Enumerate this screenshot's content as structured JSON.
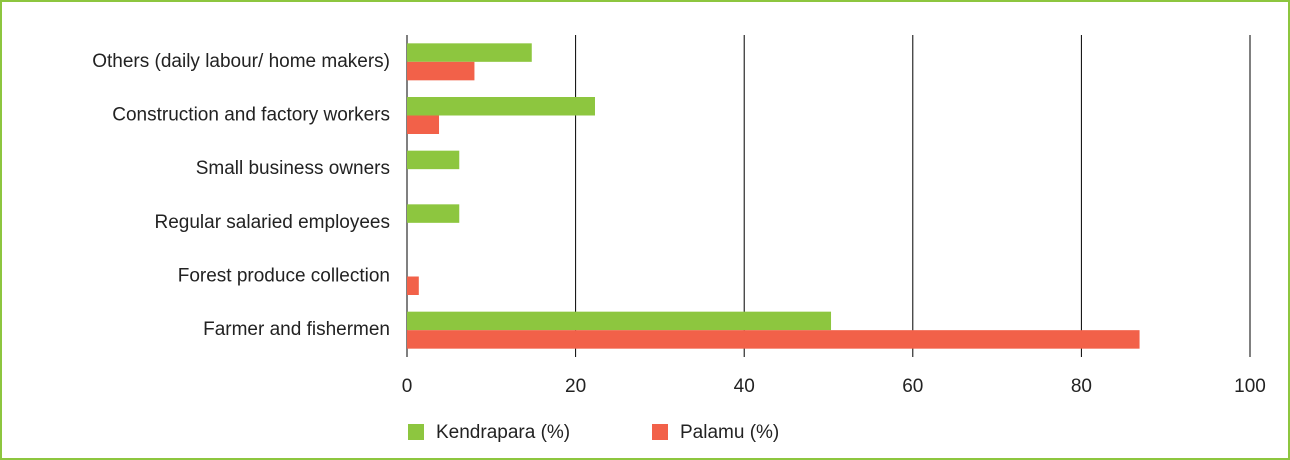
{
  "chart_data": {
    "type": "hbar",
    "categories": [
      "Others (daily labour/ home makers)",
      "Construction and factory workers",
      "Small business owners",
      "Regular salaried employees",
      "Forest produce collection",
      "Farmer and fishermen"
    ],
    "series": [
      {
        "name": "Kendrapara (%)",
        "color": "#8dc63f",
        "values": [
          14.8,
          22.3,
          6.2,
          6.2,
          0,
          50.3
        ]
      },
      {
        "name": "Palamu (%)",
        "color": "#f26149",
        "values": [
          8.0,
          3.8,
          0,
          0,
          1.4,
          86.9
        ]
      }
    ],
    "xlim": [
      0,
      100
    ],
    "xticks": [
      0,
      20,
      40,
      60,
      80,
      100
    ],
    "grid": true
  }
}
